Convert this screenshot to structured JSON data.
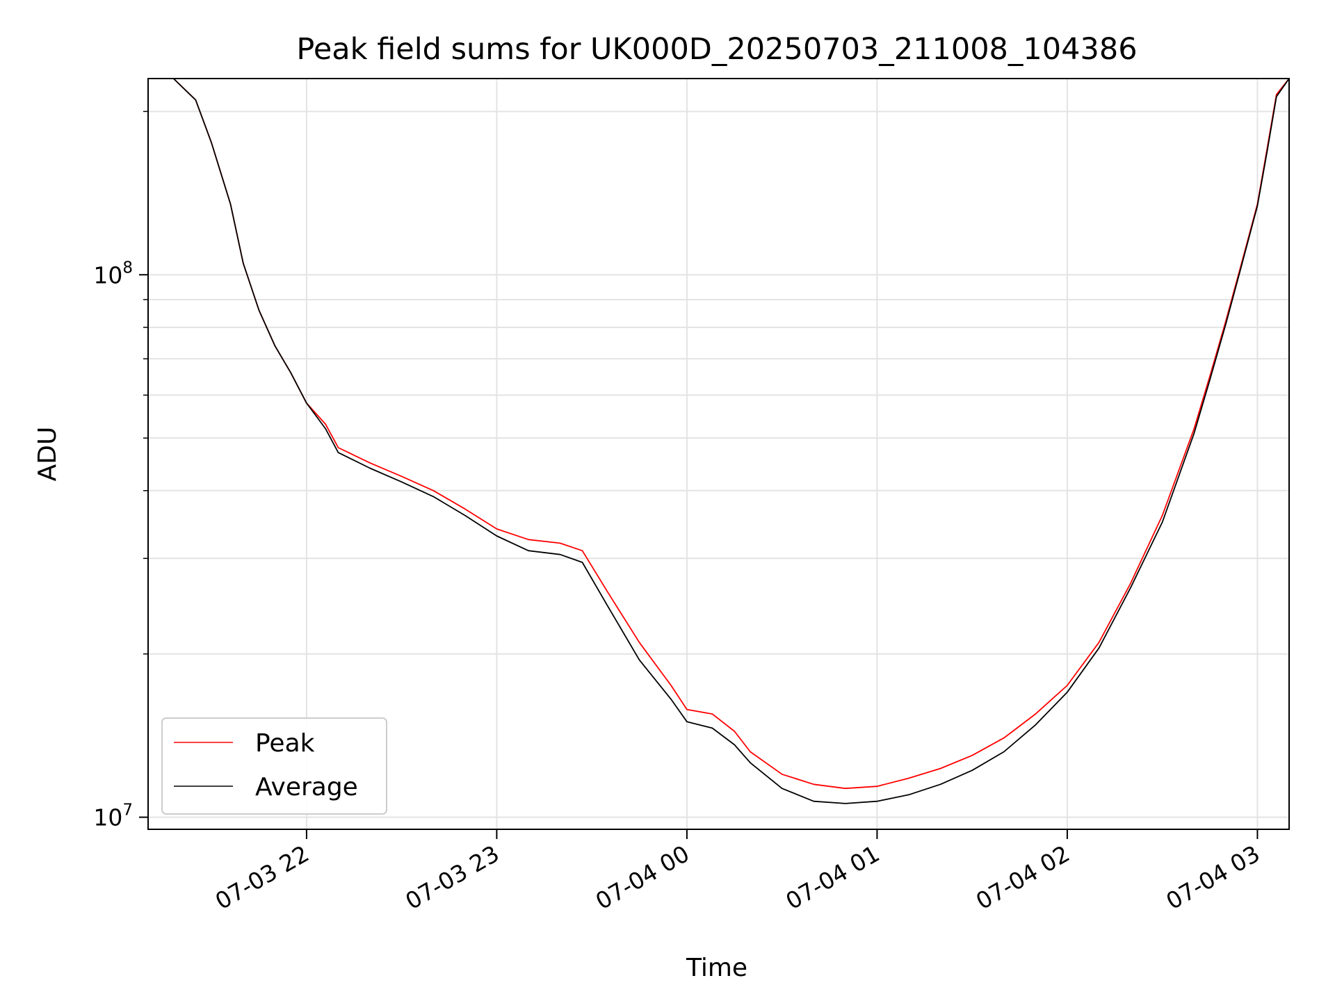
{
  "chart_data": {
    "type": "line",
    "title": "Peak field sums for UK000D_20250703_211008_104386",
    "xlabel": "Time",
    "ylabel": "ADU",
    "y_scale": "log",
    "grid": true,
    "legend_position": "lower-left",
    "xlim": [
      "2025-07-03 21:10",
      "2025-07-04 03:10"
    ],
    "ylim": [
      9500000,
      230000000
    ],
    "x_ticks": [
      "07-03 22",
      "07-03 23",
      "07-04 00",
      "07-04 01",
      "07-04 02",
      "07-04 03"
    ],
    "y_ticks": [
      {
        "value": 10000000,
        "base": "10",
        "exp": "7"
      },
      {
        "value": 100000000,
        "base": "10",
        "exp": "8"
      }
    ],
    "series": [
      {
        "name": "Peak",
        "color": "#ff0000",
        "points": [
          [
            "2025-07-03 21:10",
            230000000
          ],
          [
            "2025-07-03 21:18",
            230000000
          ],
          [
            "2025-07-03 21:25",
            210000000
          ],
          [
            "2025-07-03 21:30",
            175000000
          ],
          [
            "2025-07-03 21:36",
            135000000
          ],
          [
            "2025-07-03 21:40",
            105000000
          ],
          [
            "2025-07-03 21:45",
            86000000
          ],
          [
            "2025-07-03 21:50",
            74000000
          ],
          [
            "2025-07-03 21:55",
            66000000
          ],
          [
            "2025-07-03 22:00",
            58000000
          ],
          [
            "2025-07-03 22:06",
            53000000
          ],
          [
            "2025-07-03 22:10",
            48000000
          ],
          [
            "2025-07-03 22:20",
            45000000
          ],
          [
            "2025-07-03 22:30",
            42500000
          ],
          [
            "2025-07-03 22:40",
            40000000
          ],
          [
            "2025-07-03 22:50",
            37000000
          ],
          [
            "2025-07-03 23:00",
            34000000
          ],
          [
            "2025-07-03 23:10",
            32500000
          ],
          [
            "2025-07-03 23:20",
            32000000
          ],
          [
            "2025-07-03 23:27",
            31000000
          ],
          [
            "2025-07-03 23:35",
            26000000
          ],
          [
            "2025-07-03 23:45",
            21000000
          ],
          [
            "2025-07-03 23:55",
            17500000
          ],
          [
            "2025-07-04 00:00",
            15800000
          ],
          [
            "2025-07-04 00:08",
            15500000
          ],
          [
            "2025-07-04 00:15",
            14400000
          ],
          [
            "2025-07-04 00:20",
            13200000
          ],
          [
            "2025-07-04 00:30",
            12000000
          ],
          [
            "2025-07-04 00:40",
            11500000
          ],
          [
            "2025-07-04 00:50",
            11300000
          ],
          [
            "2025-07-04 01:00",
            11400000
          ],
          [
            "2025-07-04 01:10",
            11800000
          ],
          [
            "2025-07-04 01:20",
            12300000
          ],
          [
            "2025-07-04 01:30",
            13000000
          ],
          [
            "2025-07-04 01:40",
            14000000
          ],
          [
            "2025-07-04 01:50",
            15500000
          ],
          [
            "2025-07-04 02:00",
            17500000
          ],
          [
            "2025-07-04 02:10",
            21000000
          ],
          [
            "2025-07-04 02:20",
            27000000
          ],
          [
            "2025-07-04 02:30",
            36000000
          ],
          [
            "2025-07-04 02:40",
            52000000
          ],
          [
            "2025-07-04 02:45",
            65000000
          ],
          [
            "2025-07-04 02:50",
            82000000
          ],
          [
            "2025-07-04 02:55",
            105000000
          ],
          [
            "2025-07-04 03:00",
            135000000
          ],
          [
            "2025-07-04 03:03",
            170000000
          ],
          [
            "2025-07-04 03:06",
            215000000
          ],
          [
            "2025-07-04 03:10",
            230000000
          ]
        ]
      },
      {
        "name": "Average",
        "color": "#000000",
        "points": [
          [
            "2025-07-03 21:10",
            230000000
          ],
          [
            "2025-07-03 21:18",
            230000000
          ],
          [
            "2025-07-03 21:25",
            210000000
          ],
          [
            "2025-07-03 21:30",
            175000000
          ],
          [
            "2025-07-03 21:36",
            135000000
          ],
          [
            "2025-07-03 21:40",
            105000000
          ],
          [
            "2025-07-03 21:45",
            86000000
          ],
          [
            "2025-07-03 21:50",
            74000000
          ],
          [
            "2025-07-03 21:55",
            66000000
          ],
          [
            "2025-07-03 22:00",
            58000000
          ],
          [
            "2025-07-03 22:06",
            52000000
          ],
          [
            "2025-07-03 22:10",
            47000000
          ],
          [
            "2025-07-03 22:20",
            44000000
          ],
          [
            "2025-07-03 22:30",
            41500000
          ],
          [
            "2025-07-03 22:40",
            39000000
          ],
          [
            "2025-07-03 22:50",
            36000000
          ],
          [
            "2025-07-03 23:00",
            33000000
          ],
          [
            "2025-07-03 23:10",
            31000000
          ],
          [
            "2025-07-03 23:20",
            30500000
          ],
          [
            "2025-07-03 23:27",
            29500000
          ],
          [
            "2025-07-03 23:35",
            24500000
          ],
          [
            "2025-07-03 23:45",
            19500000
          ],
          [
            "2025-07-03 23:55",
            16500000
          ],
          [
            "2025-07-04 00:00",
            15000000
          ],
          [
            "2025-07-04 00:08",
            14600000
          ],
          [
            "2025-07-04 00:15",
            13600000
          ],
          [
            "2025-07-04 00:20",
            12600000
          ],
          [
            "2025-07-04 00:30",
            11300000
          ],
          [
            "2025-07-04 00:40",
            10700000
          ],
          [
            "2025-07-04 00:50",
            10600000
          ],
          [
            "2025-07-04 01:00",
            10700000
          ],
          [
            "2025-07-04 01:10",
            11000000
          ],
          [
            "2025-07-04 01:20",
            11500000
          ],
          [
            "2025-07-04 01:30",
            12200000
          ],
          [
            "2025-07-04 01:40",
            13200000
          ],
          [
            "2025-07-04 01:50",
            14800000
          ],
          [
            "2025-07-04 02:00",
            17000000
          ],
          [
            "2025-07-04 02:10",
            20500000
          ],
          [
            "2025-07-04 02:20",
            26500000
          ],
          [
            "2025-07-04 02:30",
            35000000
          ],
          [
            "2025-07-04 02:40",
            51000000
          ],
          [
            "2025-07-04 02:45",
            64000000
          ],
          [
            "2025-07-04 02:50",
            81000000
          ],
          [
            "2025-07-04 02:55",
            104000000
          ],
          [
            "2025-07-04 03:00",
            134000000
          ],
          [
            "2025-07-04 03:03",
            168000000
          ],
          [
            "2025-07-04 03:06",
            213000000
          ],
          [
            "2025-07-04 03:10",
            230000000
          ]
        ]
      }
    ]
  }
}
